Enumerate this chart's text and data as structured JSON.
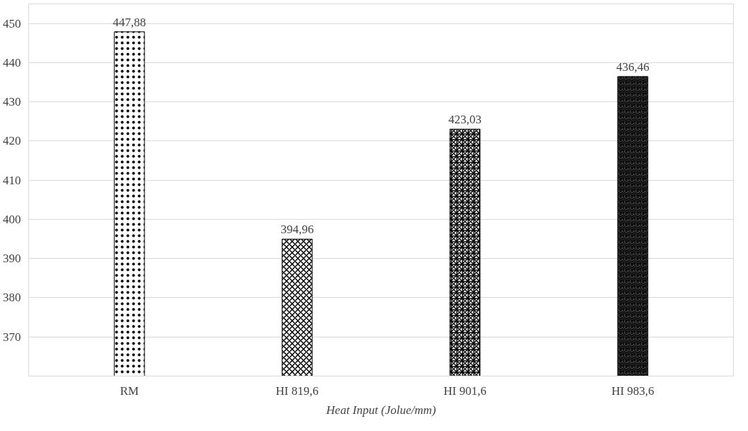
{
  "chart_data": {
    "type": "bar",
    "xlabel": "Heat Input (Jolue/mm)",
    "categories": [
      "RM",
      "HI 819,6",
      "HI 901,6",
      "HI 983,6"
    ],
    "values": [
      447.88,
      394.96,
      423.03,
      436.46
    ],
    "value_labels": [
      "447,88",
      "394,96",
      "423,03",
      "436,46"
    ],
    "color": "#000000",
    "ylim": [
      360,
      455
    ],
    "yticks": [
      370,
      380,
      390,
      400,
      410,
      420,
      430,
      440,
      450
    ],
    "grid": "y"
  }
}
